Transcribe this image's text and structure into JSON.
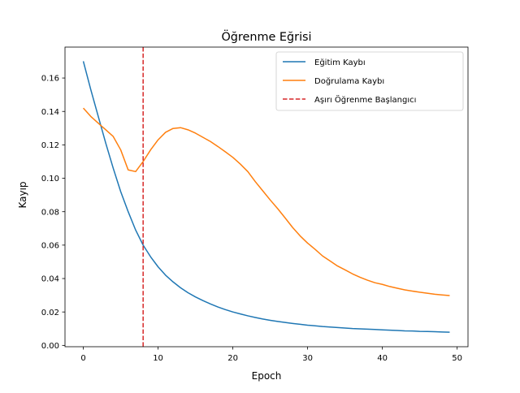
{
  "chart_data": {
    "type": "line",
    "title": "Öğrenme Eğrisi",
    "xlabel": "Epoch",
    "ylabel": "Kayıp",
    "xlim": [
      -2.45,
      51.45
    ],
    "ylim": [
      -0.0008,
      0.1785
    ],
    "x_ticks": [
      0,
      10,
      20,
      30,
      40,
      50
    ],
    "x_tick_labels": [
      "0",
      "10",
      "20",
      "30",
      "40",
      "50"
    ],
    "y_ticks": [
      0.0,
      0.02,
      0.04,
      0.06,
      0.08,
      0.1,
      0.12,
      0.14,
      0.16
    ],
    "y_tick_labels": [
      "0.00",
      "0.02",
      "0.04",
      "0.06",
      "0.08",
      "0.10",
      "0.12",
      "0.14",
      "0.16"
    ],
    "grid": false,
    "legend_position": "top-right",
    "x": [
      0,
      1,
      2,
      3,
      4,
      5,
      6,
      7,
      8,
      9,
      10,
      11,
      12,
      13,
      14,
      15,
      16,
      17,
      18,
      19,
      20,
      21,
      22,
      23,
      24,
      25,
      26,
      27,
      28,
      29,
      30,
      31,
      32,
      33,
      34,
      35,
      36,
      37,
      38,
      39,
      40,
      41,
      42,
      43,
      44,
      45,
      46,
      47,
      48,
      49
    ],
    "series": [
      {
        "name": "Eğitim Kaybı",
        "color": "#1f77b4",
        "values": [
          0.17,
          0.153,
          0.137,
          0.121,
          0.106,
          0.092,
          0.08,
          0.069,
          0.06,
          0.053,
          0.047,
          0.042,
          0.038,
          0.0345,
          0.0315,
          0.029,
          0.0268,
          0.0248,
          0.023,
          0.0214,
          0.02,
          0.0188,
          0.0177,
          0.0167,
          0.0158,
          0.015,
          0.0143,
          0.0137,
          0.0131,
          0.0126,
          0.0121,
          0.0117,
          0.0113,
          0.011,
          0.0107,
          0.0104,
          0.0101,
          0.0099,
          0.0097,
          0.0095,
          0.0093,
          0.0091,
          0.0089,
          0.0087,
          0.0086,
          0.0084,
          0.0083,
          0.0082,
          0.008,
          0.0079
        ]
      },
      {
        "name": "Doğrulama Kaybı",
        "color": "#ff7f0e",
        "values": [
          0.142,
          0.137,
          0.133,
          0.129,
          0.125,
          0.117,
          0.105,
          0.104,
          0.11,
          0.117,
          0.123,
          0.1275,
          0.1298,
          0.1303,
          0.129,
          0.127,
          0.1245,
          0.122,
          0.119,
          0.1158,
          0.1125,
          0.1085,
          0.104,
          0.098,
          0.0925,
          0.087,
          0.0818,
          0.0762,
          0.0705,
          0.0655,
          0.0612,
          0.0575,
          0.0535,
          0.0505,
          0.0475,
          0.0452,
          0.0428,
          0.0408,
          0.039,
          0.0375,
          0.0365,
          0.0352,
          0.0342,
          0.0332,
          0.0325,
          0.0318,
          0.0312,
          0.0306,
          0.0302,
          0.0298
        ]
      }
    ],
    "vlines": [
      {
        "name": "Aşırı Öğrenme Başlangıcı",
        "x": 8,
        "color": "#d62728",
        "style": "dashed"
      }
    ]
  }
}
